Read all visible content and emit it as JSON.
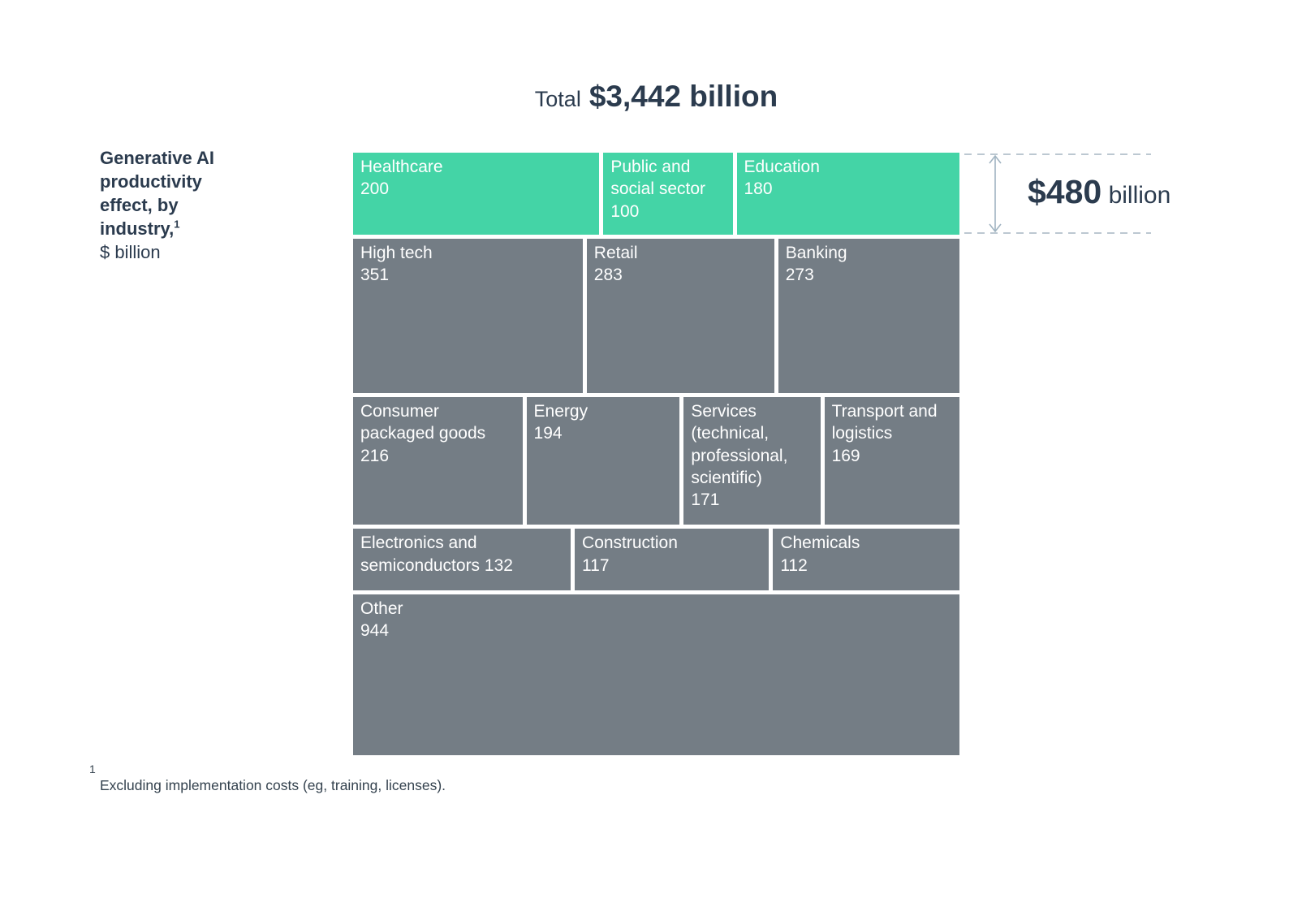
{
  "title": {
    "prefix": "Total",
    "value": "$3,442 billion"
  },
  "side_label": {
    "bold": "Generative AI productivity effect, by industry,",
    "superscript": "1",
    "unit": "$ billion"
  },
  "annotation": {
    "value": "$480",
    "unit": "billion"
  },
  "footnote": {
    "marker": "1",
    "text": "Excluding implementation costs (eg, training, licenses)."
  },
  "colors": {
    "highlight_green": "#44d4a6",
    "base_gray": "#747d85",
    "text_navy": "#2b3b4e",
    "dashed_line": "#bcc8d1",
    "arrow": "#a0b3c1",
    "block_text": "#ffffff"
  },
  "chart_data": {
    "type": "treemap",
    "title": "Total $3,442 billion",
    "unit": "$ billion",
    "total": 3442,
    "highlight_group_total": 480,
    "highlight_annotation": "$480 billion",
    "legend_position": "right",
    "rows": [
      {
        "highlight": true,
        "blocks": [
          {
            "name": "Healthcare",
            "value": 200
          },
          {
            "name": "Public and social sector",
            "value": 100
          },
          {
            "name": "Education",
            "value": 180
          }
        ]
      },
      {
        "highlight": false,
        "blocks": [
          {
            "name": "High tech",
            "value": 351
          },
          {
            "name": "Retail",
            "value": 283
          },
          {
            "name": "Banking",
            "value": 273
          }
        ]
      },
      {
        "highlight": false,
        "blocks": [
          {
            "name": "Consumer packaged goods",
            "value": 216
          },
          {
            "name": "Energy",
            "value": 194
          },
          {
            "name": "Services (technical, professional, scientific)",
            "value": 171
          },
          {
            "name": "Transport and logistics",
            "value": 169
          }
        ]
      },
      {
        "highlight": false,
        "blocks": [
          {
            "name": "Electronics and semiconductors",
            "value": 132,
            "value_inline": true
          },
          {
            "name": "Construction",
            "value": 117
          },
          {
            "name": "Chemicals",
            "value": 112
          }
        ]
      },
      {
        "highlight": false,
        "blocks": [
          {
            "name": "Other",
            "value": 944
          }
        ]
      }
    ]
  }
}
